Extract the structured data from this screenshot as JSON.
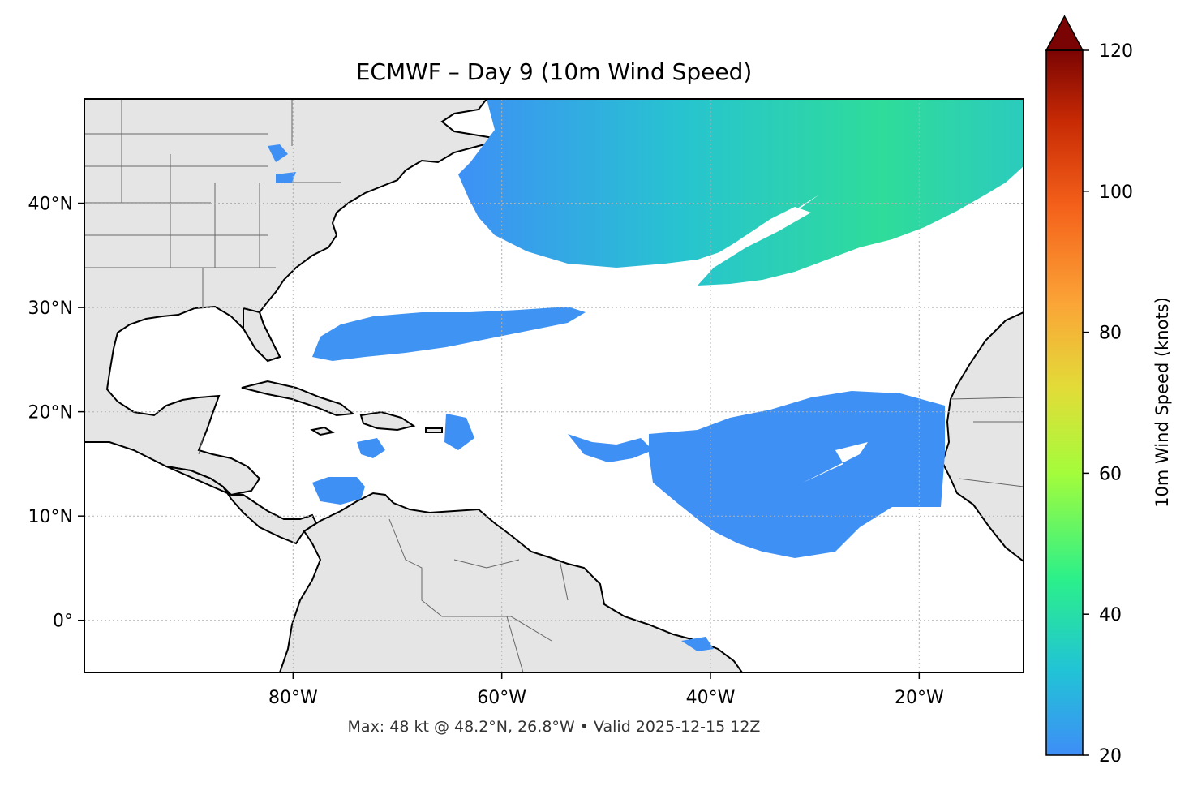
{
  "title": "ECMWF – Day 9 (10m Wind Speed)",
  "subtitle": "Max: 48 kt @ 48.2°N, 26.8°W • Valid 2025-12-15 12Z",
  "map": {
    "extent": {
      "lon_min": -100,
      "lon_max": -10,
      "lat_min": -5,
      "lat_max": 50
    },
    "lon_ticks": [
      {
        "value": -80,
        "label": "80°W"
      },
      {
        "value": -60,
        "label": "60°W"
      },
      {
        "value": -40,
        "label": "40°W"
      },
      {
        "value": -20,
        "label": "20°W"
      }
    ],
    "lat_ticks": [
      {
        "value": 0,
        "label": "0°"
      },
      {
        "value": 10,
        "label": "10°N"
      },
      {
        "value": 20,
        "label": "20°N"
      },
      {
        "value": 30,
        "label": "30°N"
      },
      {
        "value": 40,
        "label": "40°N"
      }
    ],
    "gridlines": true,
    "land_color": "#e5e5e5",
    "ocean_color": "#ffffff"
  },
  "colorbar": {
    "label": "10m Wind Speed (knots)",
    "min": 20,
    "max": 120,
    "extend": "max",
    "ticks": [
      20,
      40,
      60,
      80,
      100,
      120
    ],
    "colors": [
      "#3e8ef7",
      "#21c3d6",
      "#2bf08a",
      "#a4fc3b",
      "#e2dc38",
      "#fba537",
      "#f4601a",
      "#c72a04",
      "#7a0403"
    ]
  },
  "wind_regions": [
    {
      "name": "north-atlantic-jet",
      "lon": [
        -57,
        -10
      ],
      "lat": [
        35,
        50
      ],
      "max_speed_kt": 48
    },
    {
      "name": "subtropical-band-west",
      "lon": [
        -78,
        -54
      ],
      "lat": [
        25,
        30
      ],
      "max_speed_kt": 25
    },
    {
      "name": "trade-wind-region-east",
      "lon": [
        -44,
        -16
      ],
      "lat": [
        6,
        22
      ],
      "max_speed_kt": 24
    },
    {
      "name": "caribbean-patches",
      "lon": [
        -77,
        -57
      ],
      "lat": [
        10,
        19
      ],
      "max_speed_kt": 23
    }
  ]
}
